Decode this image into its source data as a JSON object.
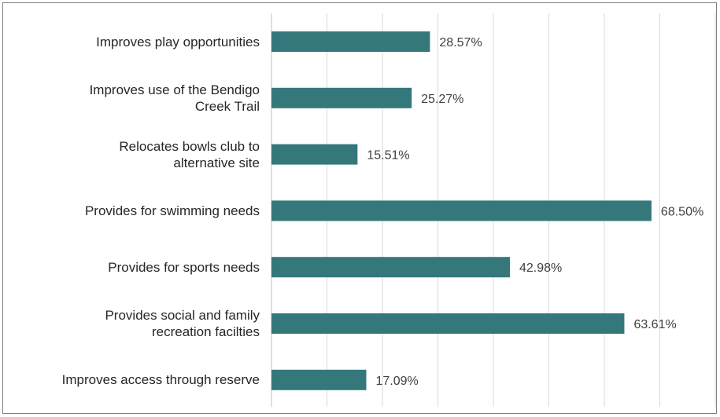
{
  "chart_data": {
    "type": "bar",
    "orientation": "horizontal",
    "categories": [
      "Improves play opportunities",
      "Improves use of the Bendigo\nCreek Trail",
      "Relocates bowls club to\nalternative site",
      "Provides for swimming needs",
      "Provides for sports needs",
      "Provides social and family\nrecreation facilties",
      "Improves access through reserve"
    ],
    "values": [
      28.57,
      25.27,
      15.51,
      68.5,
      42.98,
      63.61,
      17.09
    ],
    "value_labels": [
      "28.57%",
      "25.27%",
      "15.51%",
      "68.50%",
      "42.98%",
      "63.61%",
      "17.09%"
    ],
    "xlim": [
      0,
      80
    ],
    "grid": true,
    "bar_color": "#34787c",
    "gridline_color": "#d9d9d9",
    "text_color": "#404040"
  }
}
